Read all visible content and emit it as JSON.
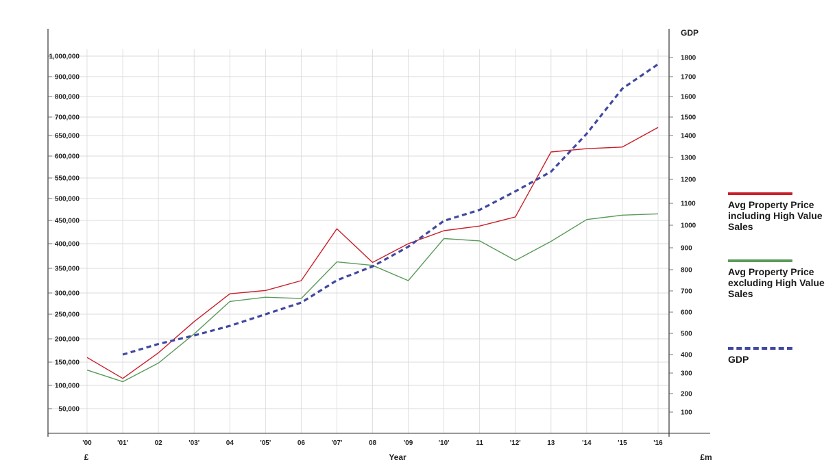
{
  "chart_data": {
    "type": "line",
    "categories": [
      "'00",
      "'01'",
      "02",
      "'03'",
      "04",
      "'05'",
      "06",
      "'07'",
      "08",
      "'09",
      "'10'",
      "11",
      "'12'",
      "13",
      "'14",
      "'15",
      "'16"
    ],
    "xlabel": "Year",
    "left_axis": {
      "unit_label": "£",
      "ylim": [
        0,
        1000000
      ],
      "ticks": [
        50000,
        100000,
        150000,
        200000,
        250000,
        300000,
        350000,
        400000,
        450000,
        500000,
        550000,
        600000,
        650000,
        700000,
        800000,
        900000,
        1000000
      ],
      "tick_labels": [
        "50,000",
        "100,000",
        "150,000",
        "200,000",
        "250,000",
        "300,000",
        "350,000",
        "400,000",
        "450,000",
        "500,000",
        "550,000",
        "600,000",
        "650,000",
        "700,000",
        "800,000",
        "900,000",
        "1,000,000"
      ]
    },
    "right_axis": {
      "title": "GDP",
      "unit_label": "£m",
      "ylim": [
        0,
        1800
      ],
      "ticks": [
        100,
        200,
        300,
        400,
        500,
        600,
        700,
        800,
        900,
        1000,
        1100,
        1200,
        1300,
        1400,
        1500,
        1600,
        1700,
        1800
      ],
      "tick_labels": [
        "100",
        "200",
        "300",
        "400",
        "500",
        "600",
        "700",
        "800",
        "900",
        "1000",
        "1100",
        "1200",
        "1300",
        "1400",
        "1500",
        "1600",
        "1700",
        "1800"
      ]
    },
    "grid": true,
    "legend_position": "right",
    "series": [
      {
        "name": "Avg Property Price including High Value Sales",
        "axis": "left",
        "color": "#c8202a",
        "style": "solid",
        "values": [
          160000,
          115000,
          170000,
          235000,
          298000,
          305000,
          325000,
          432000,
          362000,
          400000,
          428000,
          438000,
          458000,
          610000,
          618000,
          622000,
          672000
        ]
      },
      {
        "name": "Avg Property Price excluding High Value Sales",
        "axis": "left",
        "color": "#5a9a5a",
        "style": "solid",
        "values": [
          133000,
          108000,
          148000,
          210000,
          280000,
          290000,
          287000,
          363000,
          356000,
          325000,
          411000,
          406000,
          366000,
          405000,
          452000,
          462000,
          465000
        ]
      },
      {
        "name": "GDP",
        "axis": "right",
        "color": "#4048a0",
        "style": "dashed",
        "values": [
          null,
          400,
          450,
          490,
          535,
          590,
          645,
          750,
          815,
          905,
          1020,
          1070,
          1150,
          1235,
          1410,
          1640,
          1765
        ]
      }
    ]
  }
}
